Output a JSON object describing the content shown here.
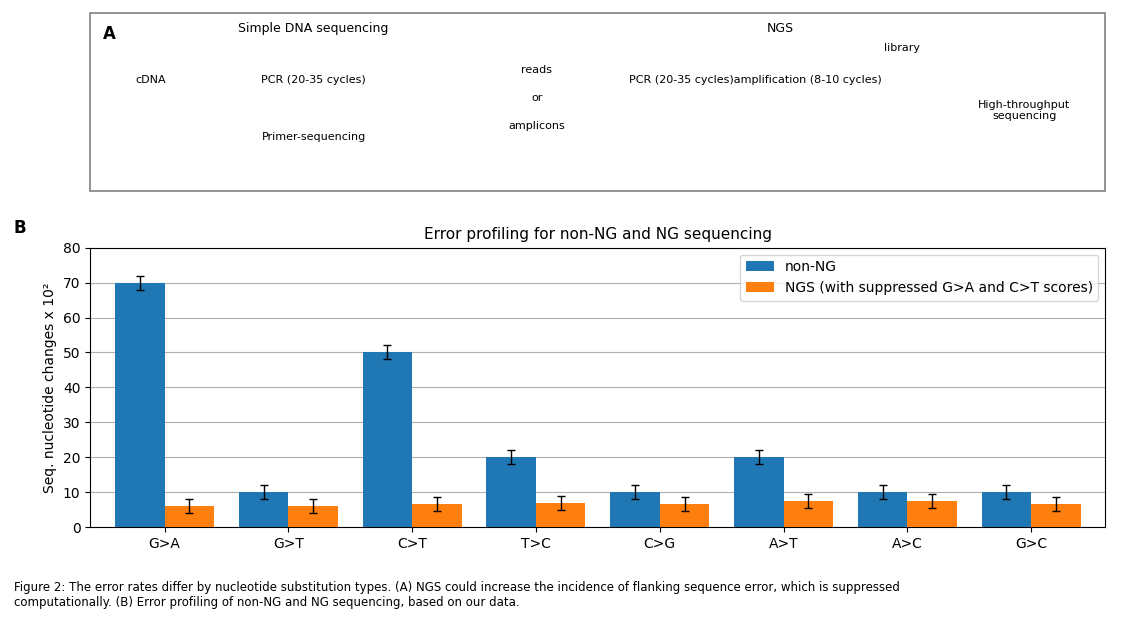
{
  "chart_data": {
    "type": "bar",
    "title": "Error profiling for non-NG and NG sequencing",
    "y_label": "Seq. nucleotide changes x 10²",
    "categories": [
      "G>A",
      "G>T",
      "C>T",
      "T>C",
      "C>G",
      "A>T",
      "A>C",
      "G>C"
    ],
    "series": [
      {
        "name": "non-NG",
        "values": [
          70,
          10,
          50,
          20,
          10,
          20,
          10,
          10
        ],
        "errors": [
          2,
          2,
          2,
          2,
          2,
          2,
          2,
          2
        ]
      },
      {
        "name": "NGS (with suppressed G>A and C>T scores)",
        "values": [
          6,
          6,
          6.5,
          7,
          6.5,
          7.5,
          7.5,
          6.5
        ],
        "errors": [
          2,
          2,
          2,
          2,
          2,
          2,
          2,
          2
        ]
      }
    ],
    "ylim": [
      0,
      80
    ],
    "yticks": [
      0,
      10,
      20,
      30,
      40,
      50,
      60,
      70,
      80
    ],
    "grid": true,
    "legend": "upper right",
    "annotations": [
      "A",
      "Simple DNA sequencing",
      "NGS",
      "cDNA",
      "PCR (20-35 cycles)",
      "Primer-sequencing",
      "PCR (20-35 cycles)amplification (8-10 cycles)",
      "library",
      "reads",
      "or",
      "amplicons",
      "High-throughput\nsequencing",
      "B",
      "Figure 2: The error rates differ by nucleotide substitution types. (A) NGS could increase the incidence of flanking sequence error, which is suppressed\ncomputationally. (B) Error profiling of non-NG and NG sequencing, based on our data."
    ]
  }
}
